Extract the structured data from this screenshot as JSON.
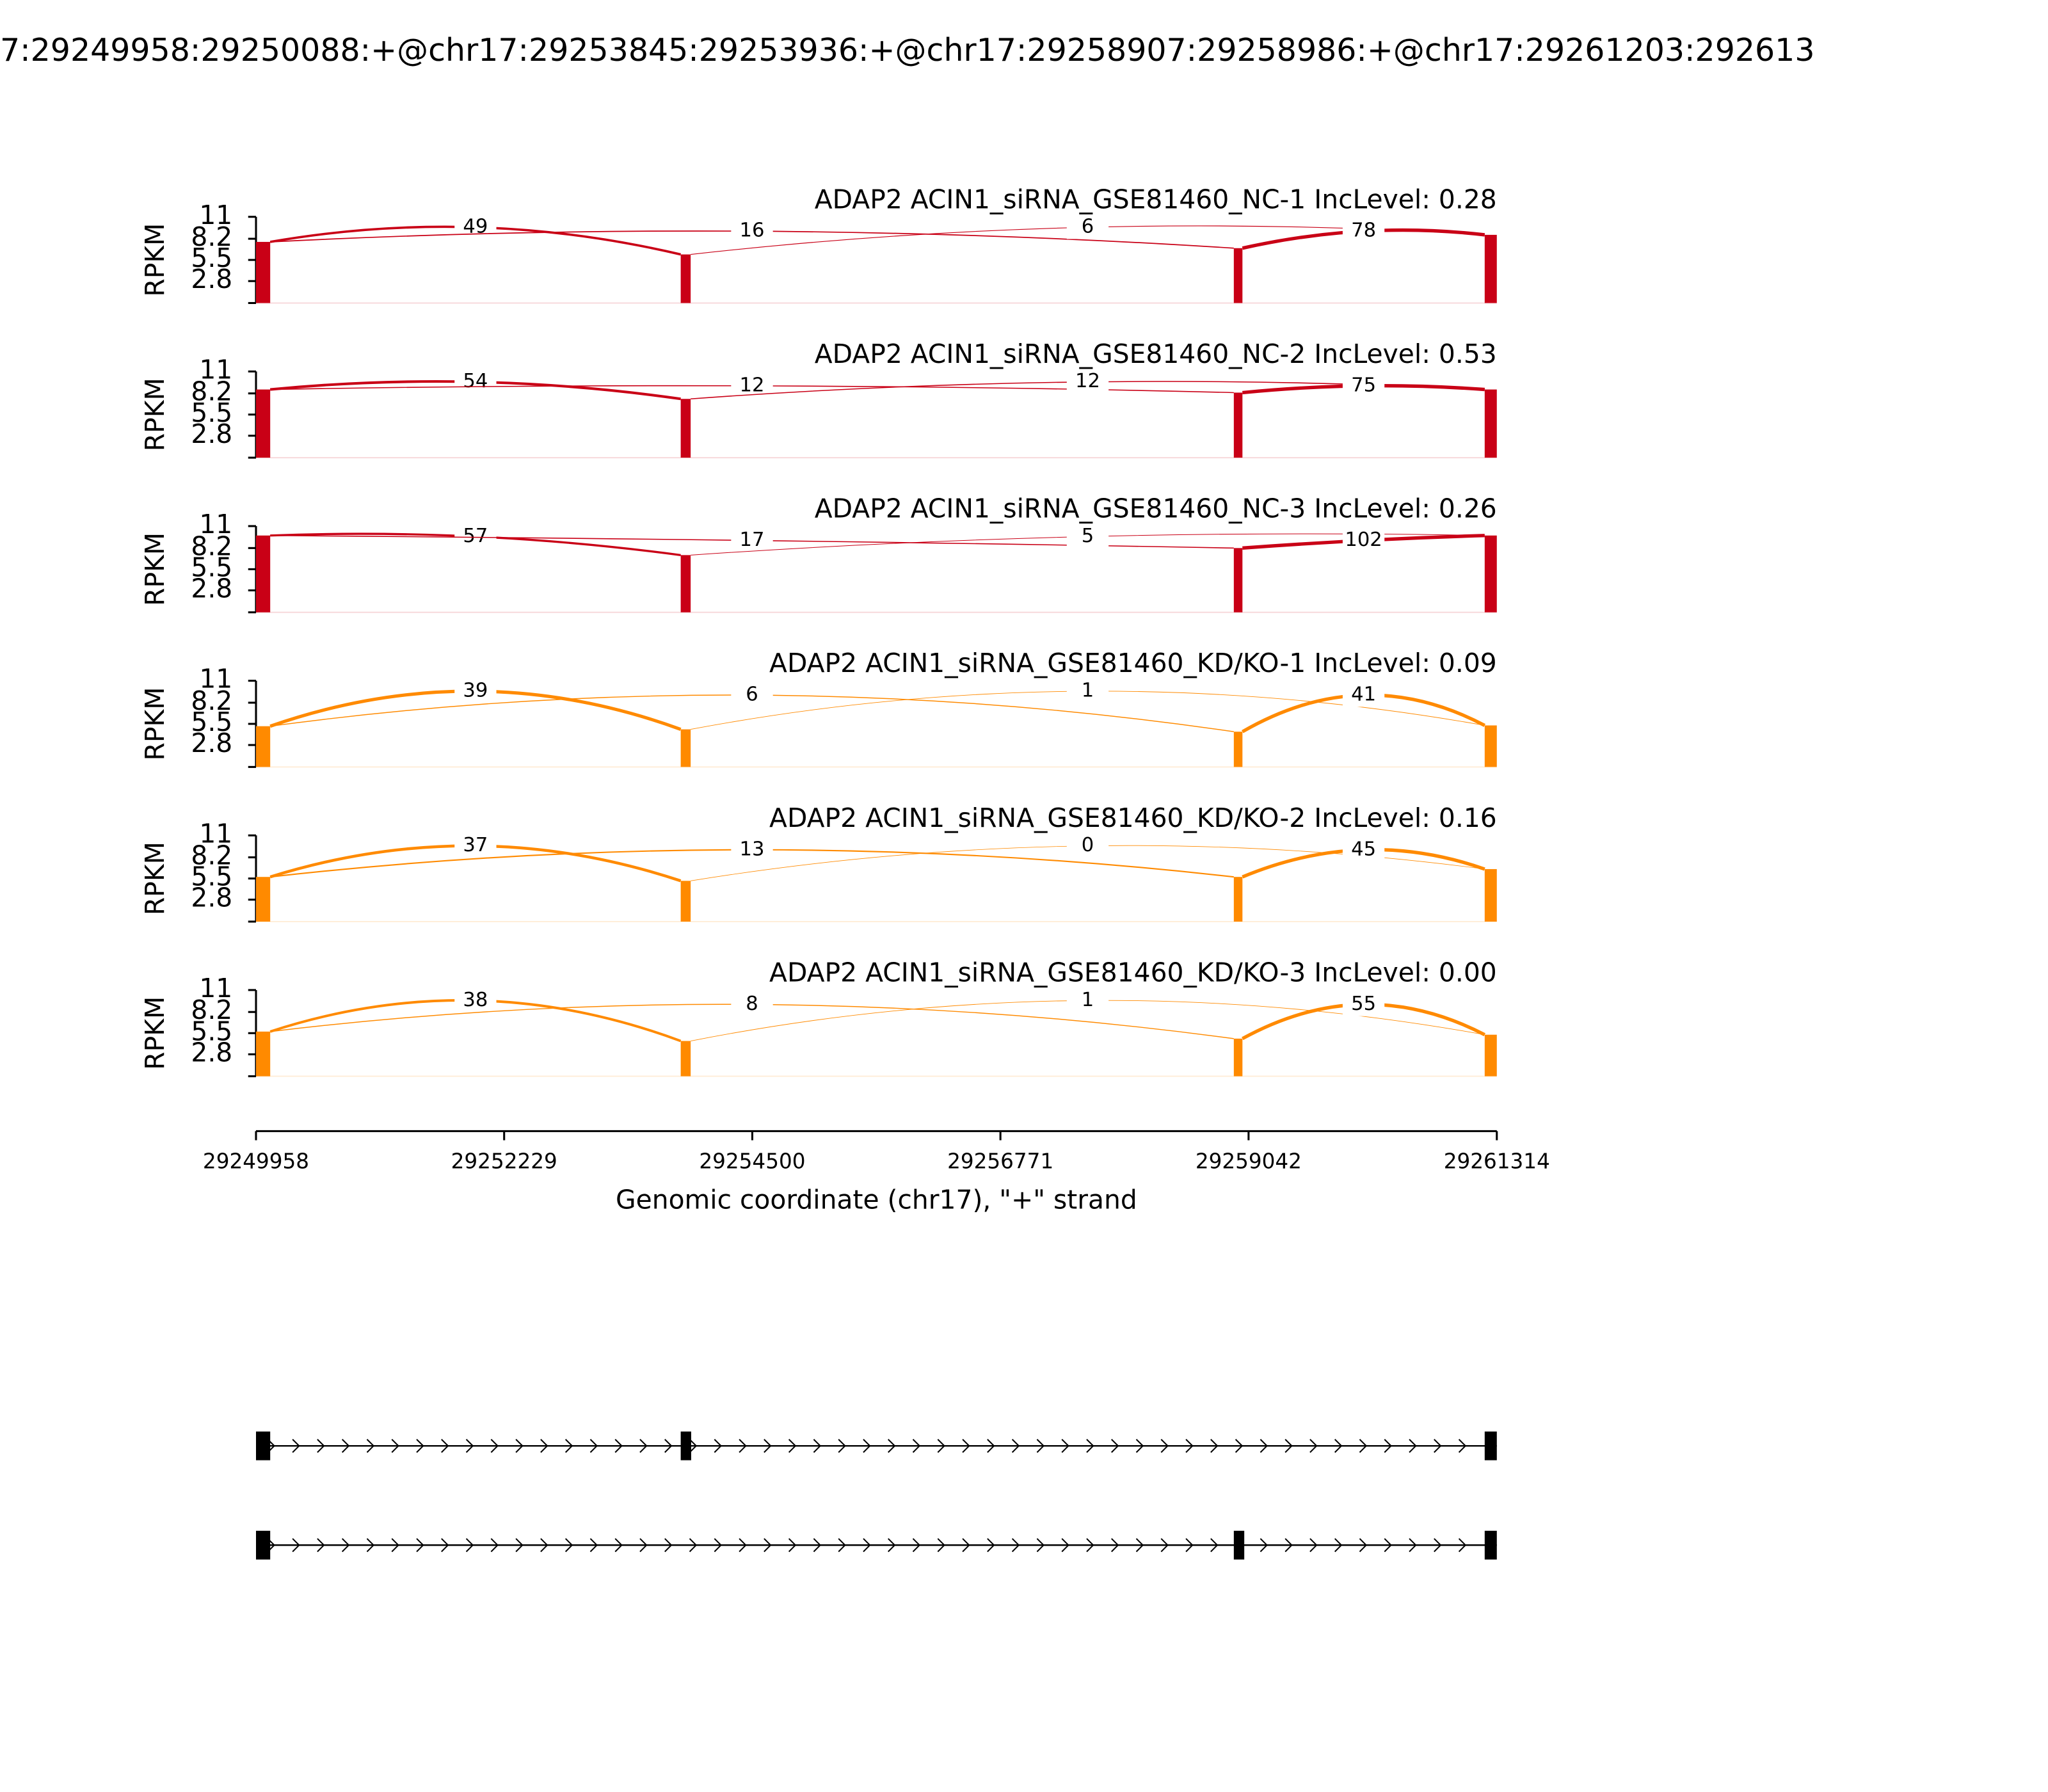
{
  "chart_data": {
    "type": "sashimi",
    "title": "7:29249958:29250088:+@chr17:29253845:29253936:+@chr17:29258907:29258986:+@chr17:29261203:292613",
    "xlabel": "Genomic coordinate (chr17), \"+\" strand",
    "ylabel": "RPKM",
    "xlim": [
      29249958,
      29261314
    ],
    "xticks": [
      29249958,
      29252229,
      29254500,
      29256771,
      29259042,
      29261314
    ],
    "ylim": [
      0,
      11
    ],
    "yticks": [
      2.8,
      5.5,
      8.2,
      11
    ],
    "exons": [
      [
        29249958,
        29250088
      ],
      [
        29253845,
        29253936
      ],
      [
        29258907,
        29258986
      ],
      [
        29261203,
        29261314
      ]
    ],
    "series": [
      {
        "name": "ADAP2 ACIN1_siRNA_GSE81460_NC-1 IncLevel: 0.28",
        "color": "#c90016",
        "coverage": [
          7.8,
          6.2,
          7,
          8.7
        ],
        "junction_counts": [
          49,
          16,
          6,
          78
        ]
      },
      {
        "name": "ADAP2 ACIN1_siRNA_GSE81460_NC-2 IncLevel: 0.53",
        "color": "#c90016",
        "coverage": [
          8.7,
          7.5,
          8.3,
          8.7
        ],
        "junction_counts": [
          54,
          12,
          12,
          75
        ]
      },
      {
        "name": "ADAP2 ACIN1_siRNA_GSE81460_NC-3 IncLevel: 0.26",
        "color": "#c90016",
        "coverage": [
          9.8,
          7.3,
          8.2,
          9.8
        ],
        "junction_counts": [
          57,
          17,
          5,
          102
        ]
      },
      {
        "name": "ADAP2 ACIN1_siRNA_GSE81460_KD/KO-1 IncLevel: 0.09",
        "color": "#ff8a00",
        "coverage": [
          5.2,
          4.8,
          4.5,
          5.3
        ],
        "junction_counts": [
          39,
          6,
          1,
          41
        ]
      },
      {
        "name": "ADAP2 ACIN1_siRNA_GSE81460_KD/KO-2 IncLevel: 0.16",
        "color": "#ff8a00",
        "coverage": [
          5.7,
          5.2,
          5.7,
          6.7
        ],
        "junction_counts": [
          37,
          13,
          0,
          45
        ]
      },
      {
        "name": "ADAP2 ACIN1_siRNA_GSE81460_KD/KO-3 IncLevel: 0.00",
        "color": "#ff8a00",
        "coverage": [
          5.7,
          4.5,
          4.8,
          5.3
        ],
        "junction_counts": [
          38,
          8,
          1,
          55
        ]
      }
    ]
  }
}
